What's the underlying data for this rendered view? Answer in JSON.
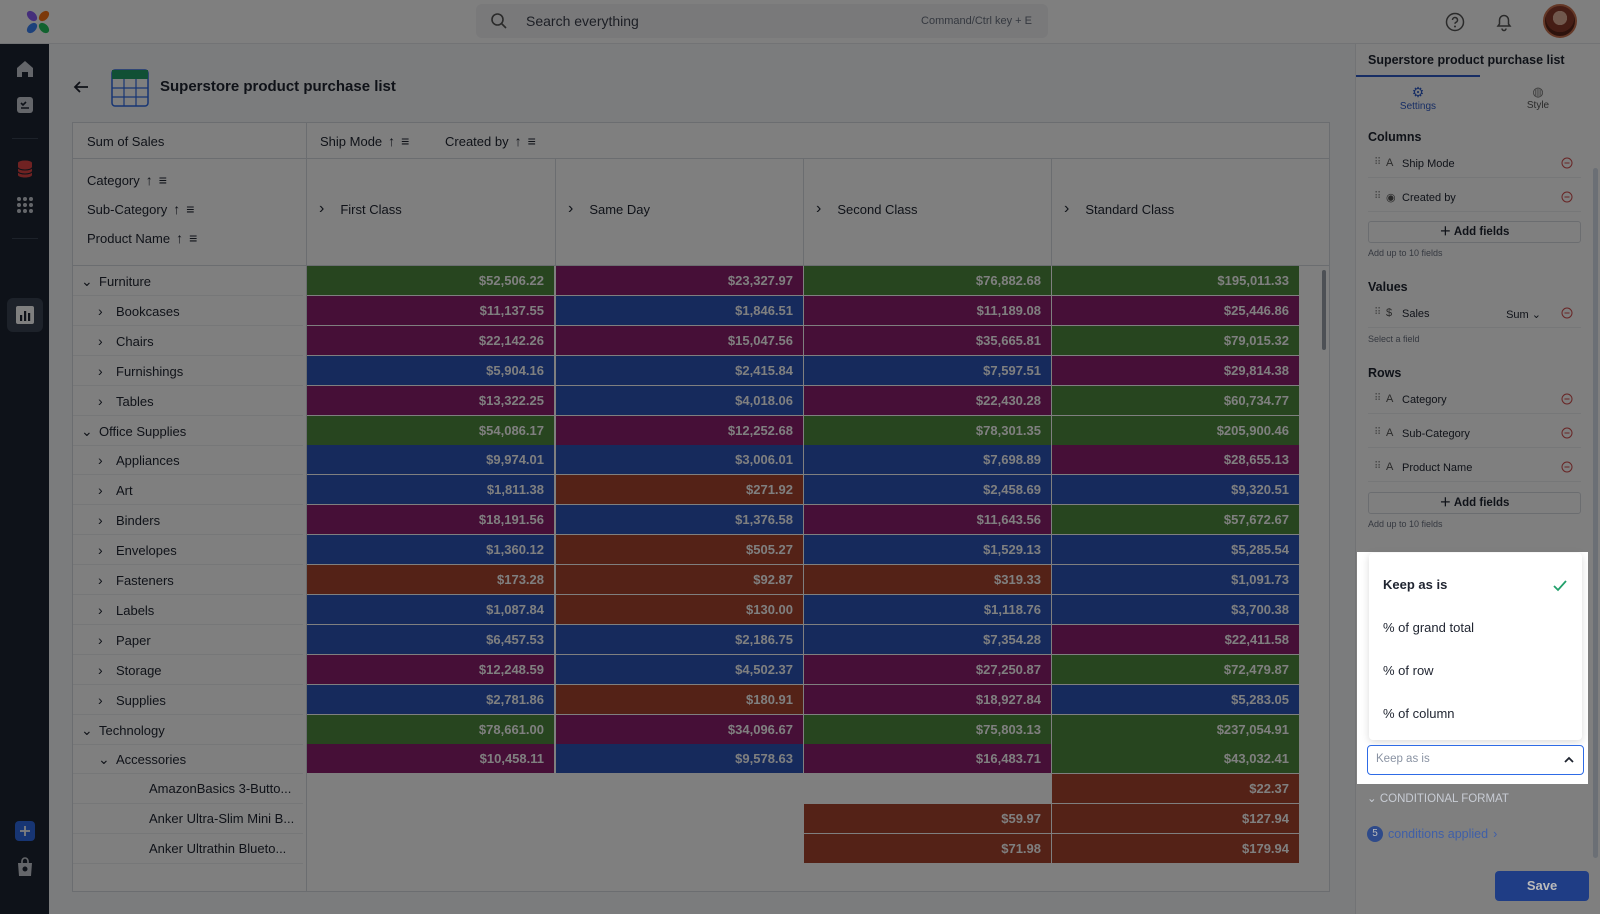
{
  "search": {
    "placeholder": "Search everything",
    "hint": "Command/Ctrl key + E"
  },
  "page": {
    "title": "Superstore product purchase list"
  },
  "grid": {
    "corner": "Sum of Sales",
    "col_fields": [
      "Ship Mode",
      "Created by"
    ],
    "row_fields": [
      "Category",
      "Sub-Category",
      "Product Name"
    ],
    "columns": [
      "First Class",
      "Same Day",
      "Second Class",
      "Standard Class"
    ],
    "rows": [
      {
        "label": "Furniture",
        "level": 0,
        "expander": "down",
        "values": [
          "$52,506.22",
          "$23,327.97",
          "$76,882.68",
          "$195,011.33"
        ],
        "colors": [
          "g",
          "m",
          "g",
          "g"
        ]
      },
      {
        "label": "Bookcases",
        "level": 1,
        "expander": "right",
        "values": [
          "$11,137.55",
          "$1,846.51",
          "$11,189.08",
          "$25,446.86"
        ],
        "colors": [
          "m",
          "b",
          "m",
          "m"
        ]
      },
      {
        "label": "Chairs",
        "level": 1,
        "expander": "right",
        "values": [
          "$22,142.26",
          "$15,047.56",
          "$35,665.81",
          "$79,015.32"
        ],
        "colors": [
          "m",
          "m",
          "m",
          "g"
        ]
      },
      {
        "label": "Furnishings",
        "level": 1,
        "expander": "right",
        "values": [
          "$5,904.16",
          "$2,415.84",
          "$7,597.51",
          "$29,814.38"
        ],
        "colors": [
          "b",
          "b",
          "b",
          "m"
        ]
      },
      {
        "label": "Tables",
        "level": 1,
        "expander": "right",
        "values": [
          "$13,322.25",
          "$4,018.06",
          "$22,430.28",
          "$60,734.77"
        ],
        "colors": [
          "m",
          "b",
          "m",
          "g"
        ]
      },
      {
        "label": "Office Supplies",
        "level": 0,
        "expander": "down",
        "values": [
          "$54,086.17",
          "$12,252.68",
          "$78,301.35",
          "$205,900.46"
        ],
        "colors": [
          "g",
          "m",
          "g",
          "g"
        ]
      },
      {
        "label": "Appliances",
        "level": 1,
        "expander": "right",
        "values": [
          "$9,974.01",
          "$3,006.01",
          "$7,698.89",
          "$28,655.13"
        ],
        "colors": [
          "b",
          "b",
          "b",
          "m"
        ]
      },
      {
        "label": "Art",
        "level": 1,
        "expander": "right",
        "values": [
          "$1,811.38",
          "$271.92",
          "$2,458.69",
          "$9,320.51"
        ],
        "colors": [
          "b",
          "r",
          "b",
          "b"
        ]
      },
      {
        "label": "Binders",
        "level": 1,
        "expander": "right",
        "values": [
          "$18,191.56",
          "$1,376.58",
          "$11,643.56",
          "$57,672.67"
        ],
        "colors": [
          "m",
          "b",
          "m",
          "g"
        ]
      },
      {
        "label": "Envelopes",
        "level": 1,
        "expander": "right",
        "values": [
          "$1,360.12",
          "$505.27",
          "$1,529.13",
          "$5,285.54"
        ],
        "colors": [
          "b",
          "r",
          "b",
          "b"
        ]
      },
      {
        "label": "Fasteners",
        "level": 1,
        "expander": "right",
        "values": [
          "$173.28",
          "$92.87",
          "$319.33",
          "$1,091.73"
        ],
        "colors": [
          "r",
          "r",
          "r",
          "b"
        ]
      },
      {
        "label": "Labels",
        "level": 1,
        "expander": "right",
        "values": [
          "$1,087.84",
          "$130.00",
          "$1,118.76",
          "$3,700.38"
        ],
        "colors": [
          "b",
          "r",
          "b",
          "b"
        ]
      },
      {
        "label": "Paper",
        "level": 1,
        "expander": "right",
        "values": [
          "$6,457.53",
          "$2,186.75",
          "$7,354.28",
          "$22,411.58"
        ],
        "colors": [
          "b",
          "b",
          "b",
          "m"
        ]
      },
      {
        "label": "Storage",
        "level": 1,
        "expander": "right",
        "values": [
          "$12,248.59",
          "$4,502.37",
          "$27,250.87",
          "$72,479.87"
        ],
        "colors": [
          "m",
          "b",
          "m",
          "g"
        ]
      },
      {
        "label": "Supplies",
        "level": 1,
        "expander": "right",
        "values": [
          "$2,781.86",
          "$180.91",
          "$18,927.84",
          "$5,283.05"
        ],
        "colors": [
          "b",
          "r",
          "m",
          "b"
        ]
      },
      {
        "label": "Technology",
        "level": 0,
        "expander": "down",
        "values": [
          "$78,661.00",
          "$34,096.67",
          "$75,803.13",
          "$237,054.91"
        ],
        "colors": [
          "g",
          "m",
          "g",
          "g"
        ]
      },
      {
        "label": "Accessories",
        "level": 1,
        "expander": "down",
        "values": [
          "$10,458.11",
          "$9,578.63",
          "$16,483.71",
          "$43,032.41"
        ],
        "colors": [
          "m",
          "b",
          "m",
          "g"
        ]
      },
      {
        "label": "AmazonBasics 3-Butto...",
        "level": 2,
        "expander": "",
        "values": [
          "",
          "",
          "",
          "$22.37"
        ],
        "colors": [
          "",
          "",
          "",
          "r"
        ]
      },
      {
        "label": "Anker Ultra-Slim Mini B...",
        "level": 2,
        "expander": "",
        "values": [
          "",
          "",
          "$59.97",
          "$127.94"
        ],
        "colors": [
          "",
          "",
          "r",
          "r"
        ]
      },
      {
        "label": "Anker Ultrathin Blueto...",
        "level": 2,
        "expander": "",
        "values": [
          "",
          "",
          "$71.98",
          "$179.94"
        ],
        "colors": [
          "",
          "",
          "r",
          "r"
        ]
      }
    ]
  },
  "colors": {
    "g": "#4e8a3e",
    "m": "#8c1f6e",
    "b": "#2c55b8",
    "r": "#a8442f"
  },
  "panel": {
    "title": "Superstore product purchase list",
    "tabs": [
      "Settings",
      "Style"
    ],
    "columns_label": "Columns",
    "columns": [
      "Ship Mode",
      "Created by"
    ],
    "add_fields": "Add fields",
    "limit": "Add up to 10 fields",
    "values_label": "Values",
    "value_field": "Sales",
    "value_agg": "Sum",
    "select_field": "Select a field",
    "rows_label": "Rows",
    "rows": [
      "Category",
      "Sub-Category",
      "Product Name"
    ],
    "dropdown_options": [
      "Keep as is",
      "% of grand total",
      "% of row",
      "% of column"
    ],
    "dropdown_value": "Keep as is",
    "conditional_format": "CONDITIONAL FORMAT",
    "conditions_count": "5",
    "conditions_text": "conditions applied",
    "save": "Save"
  }
}
